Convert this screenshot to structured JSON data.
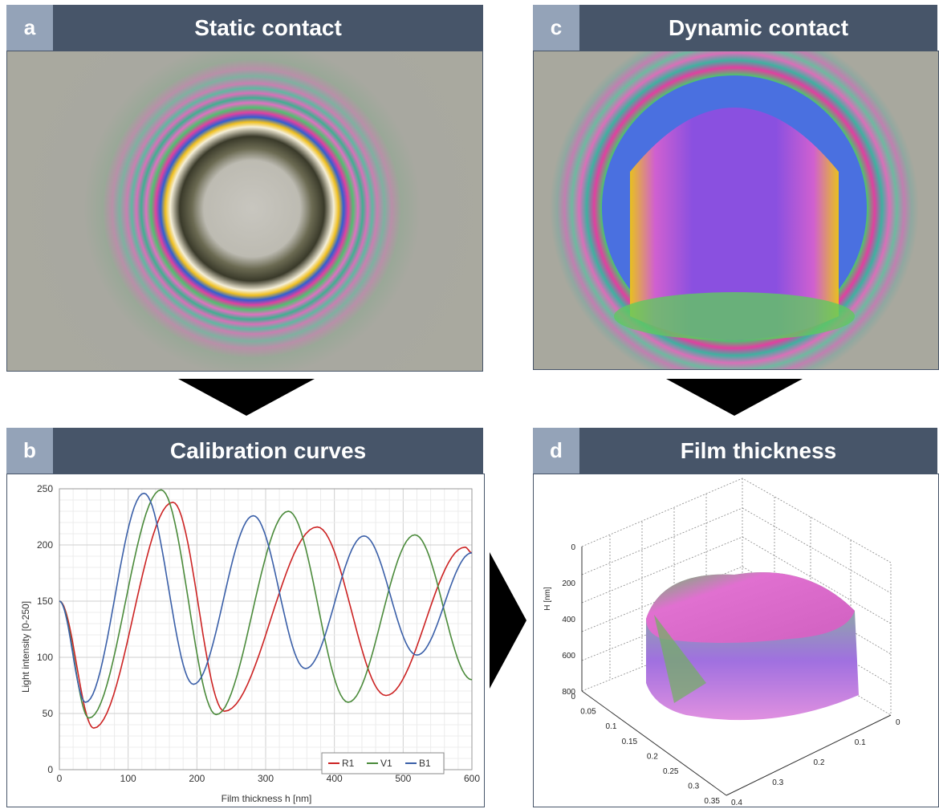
{
  "panels": {
    "a": {
      "letter": "a",
      "title": "Static contact"
    },
    "b": {
      "letter": "b",
      "title": "Calibration curves"
    },
    "c": {
      "letter": "c",
      "title": "Dynamic contact"
    },
    "d": {
      "letter": "d",
      "title": "Film thickness"
    }
  },
  "colors": {
    "header": "#475569",
    "letter_box": "#94a3b8",
    "red": "#cc2222",
    "green": "#4a8a3a",
    "blue": "#3a5fa8"
  },
  "chart_data": [
    {
      "type": "line",
      "panel": "b",
      "xlabel": "Film thickness h [nm]",
      "ylabel": "Light intensity [0-250]",
      "xlim": [
        0,
        600
      ],
      "ylim": [
        0,
        250
      ],
      "xticks": [
        "0",
        "100",
        "200",
        "300",
        "400",
        "500",
        "600"
      ],
      "yticks": [
        "0",
        "50",
        "100",
        "150",
        "200",
        "250"
      ],
      "grid": true,
      "legend_placement": "bottom-right",
      "series": [
        {
          "name": "R1",
          "color": "#cc2222",
          "x": [
            0,
            50,
            165,
            240,
            375,
            475,
            590,
            600
          ],
          "y": [
            150,
            37,
            238,
            52,
            216,
            66,
            198,
            193
          ]
        },
        {
          "name": "V1",
          "color": "#4a8a3a",
          "x": [
            0,
            43,
            148,
            228,
            333,
            420,
            517,
            600
          ],
          "y": [
            150,
            46,
            249,
            49,
            230,
            60,
            209,
            80
          ]
        },
        {
          "name": "B1",
          "color": "#3a5fa8",
          "x": [
            0,
            38,
            123,
            195,
            282,
            358,
            443,
            520,
            600
          ],
          "y": [
            150,
            60,
            246,
            76,
            226,
            90,
            208,
            102,
            193
          ]
        }
      ]
    },
    {
      "type": "surface",
      "panel": "d",
      "zlabel": "H [nm]",
      "zticks": [
        "0",
        "200",
        "400",
        "600",
        "800"
      ],
      "xticks": [
        "0",
        "0.05",
        "0.1",
        "0.15",
        "0.2",
        "0.25",
        "0.3",
        "0.35"
      ],
      "yticks": [
        "0.4",
        "0.3",
        "0.2",
        "0.1",
        "0"
      ]
    }
  ]
}
